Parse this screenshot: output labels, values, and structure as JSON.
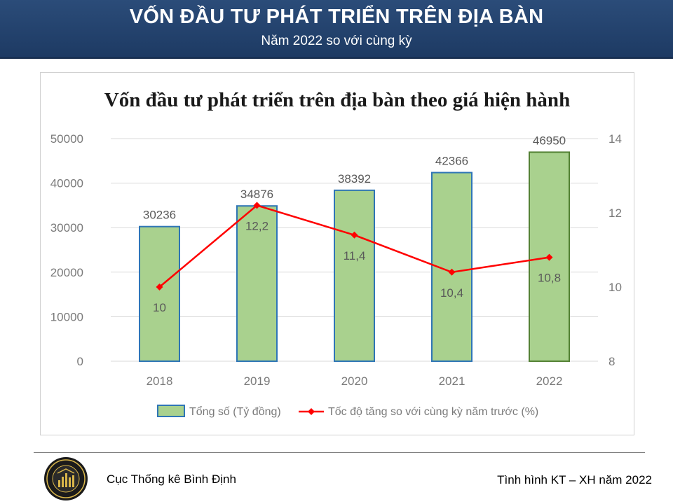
{
  "header": {
    "title": "VỐN ĐẦU TƯ PHÁT TRIỂN TRÊN ĐỊA BÀN",
    "subtitle": "Năm 2022 so với cùng kỳ"
  },
  "chart_data": {
    "type": "bar",
    "title": "Vốn đầu tư phát triển trên địa bàn theo giá hiện hành",
    "categories": [
      "2018",
      "2019",
      "2020",
      "2021",
      "2022"
    ],
    "series": [
      {
        "name": "Tổng số (Tỷ đồng)",
        "type": "bar",
        "axis": "left",
        "values": [
          30236,
          34876,
          38392,
          42366,
          46950
        ],
        "labels": [
          "30236",
          "34876",
          "38392",
          "42366",
          "46950"
        ],
        "color": "#a9d18e"
      },
      {
        "name": "Tốc độ tăng so với cùng kỳ năm trước (%)",
        "type": "line",
        "axis": "right",
        "values": [
          10.0,
          12.2,
          11.4,
          10.4,
          10.8
        ],
        "labels": [
          "10",
          "12,2",
          "11,4",
          "10,4",
          "10,8"
        ],
        "color": "#ff0000"
      }
    ],
    "ylim_left": [
      0,
      50000
    ],
    "yticks_left": [
      "0",
      "10000",
      "20000",
      "30000",
      "40000",
      "50000"
    ],
    "ylim_right": [
      8,
      14
    ],
    "yticks_right": [
      "8",
      "10",
      "12",
      "14"
    ],
    "grid": true,
    "legend_position": "bottom"
  },
  "footer": {
    "org": "Cục Thống kê Bình Định",
    "report": "Tình hình KT – XH năm 2022"
  },
  "colors": {
    "banner": "#1f3d68",
    "bar_fill": "#a9d18e",
    "bar_border": "#2e75b6",
    "bar_border_last": "#548235",
    "line": "#ff0000"
  }
}
